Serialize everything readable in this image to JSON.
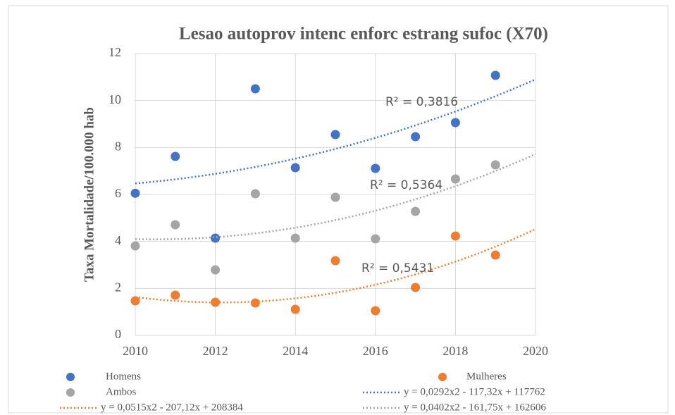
{
  "chart_data": {
    "type": "scatter",
    "title": "Lesao autoprov intenc enforc estrang sufoc (X70)",
    "y_label": "Taxa Mortalidade/100.000 hab",
    "x": [
      2010,
      2011,
      2012,
      2013,
      2014,
      2015,
      2016,
      2017,
      2018,
      2019
    ],
    "xlim": [
      2010,
      2020
    ],
    "xticks": [
      2010,
      2012,
      2014,
      2016,
      2018,
      2020
    ],
    "ylim": [
      0,
      12
    ],
    "yticks": [
      0,
      2,
      4,
      6,
      8,
      10,
      12
    ],
    "grid": true,
    "series": [
      {
        "name": "Homens",
        "color": "#4472c4",
        "values": [
          6.05,
          7.62,
          4.14,
          10.5,
          7.14,
          8.55,
          7.11,
          8.46,
          9.06,
          11.07
        ],
        "trendline": {
          "label": "y = 0,0292x2 - 117,32x + 117762",
          "r2_label": "R² = 0,3816"
        }
      },
      {
        "name": "Mulheres",
        "color": "#ed7d31",
        "values": [
          1.47,
          1.71,
          1.41,
          1.38,
          1.11,
          3.18,
          1.05,
          2.04,
          4.23,
          3.42
        ],
        "trendline": {
          "label": "y = 0,0515x2 - 207,12x + 208384",
          "r2_label": "R² = 0,5431"
        }
      },
      {
        "name": "Ambos",
        "color": "#a5a5a5",
        "values": [
          3.81,
          4.71,
          2.79,
          6.03,
          4.14,
          5.88,
          4.11,
          5.28,
          6.66,
          7.26
        ],
        "trendline": {
          "label": "y = 0,0402x2 - 161,75x + 162606",
          "r2_label": "R² = 0,5364"
        }
      }
    ]
  }
}
